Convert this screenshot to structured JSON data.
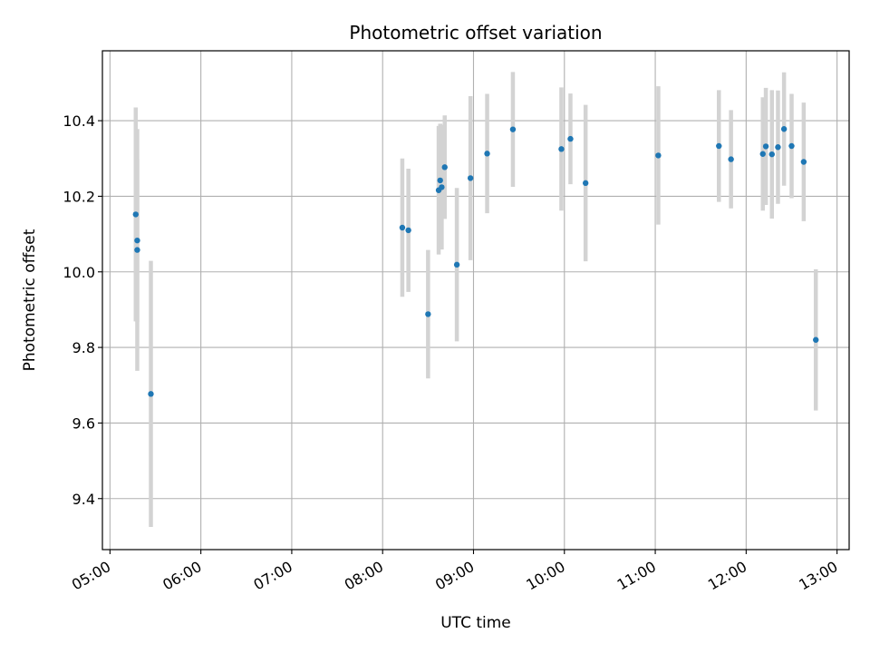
{
  "chart_data": {
    "type": "scatter",
    "title": "Photometric offset variation",
    "xlabel": "UTC time",
    "ylabel": "Photometric offset",
    "xlim": [
      "04:55",
      "13:08"
    ],
    "ylim": [
      9.265,
      10.585
    ],
    "x_ticks": [
      "05:00",
      "06:00",
      "07:00",
      "08:00",
      "09:00",
      "10:00",
      "11:00",
      "12:00",
      "13:00"
    ],
    "y_ticks": [
      "9.4",
      "9.6",
      "9.8",
      "10.0",
      "10.2",
      "10.4"
    ],
    "grid": true,
    "colors": {
      "marker": "#1f77b4",
      "errorbar": "#d3d3d3",
      "grid": "#b0b0b0"
    },
    "points": [
      {
        "x": "05:17",
        "y": 10.152,
        "yerr": 0.283
      },
      {
        "x": "05:18",
        "y": 10.083,
        "yerr": 0.215
      },
      {
        "x": "05:18",
        "y": 10.058,
        "yerr": 0.32
      },
      {
        "x": "05:27",
        "y": 9.677,
        "yerr": 0.352
      },
      {
        "x": "08:13",
        "y": 10.117,
        "yerr": 0.183
      },
      {
        "x": "08:17",
        "y": 10.11,
        "yerr": 0.163
      },
      {
        "x": "08:30",
        "y": 9.888,
        "yerr": 0.17
      },
      {
        "x": "08:37",
        "y": 10.216,
        "yerr": 0.17
      },
      {
        "x": "08:38",
        "y": 10.242,
        "yerr": 0.15
      },
      {
        "x": "08:39",
        "y": 10.224,
        "yerr": 0.165
      },
      {
        "x": "08:41",
        "y": 10.277,
        "yerr": 0.137
      },
      {
        "x": "08:49",
        "y": 10.019,
        "yerr": 0.203
      },
      {
        "x": "08:58",
        "y": 10.248,
        "yerr": 0.217
      },
      {
        "x": "09:09",
        "y": 10.313,
        "yerr": 0.158
      },
      {
        "x": "09:26",
        "y": 10.377,
        "yerr": 0.152
      },
      {
        "x": "09:58",
        "y": 10.325,
        "yerr": 0.163
      },
      {
        "x": "10:04",
        "y": 10.352,
        "yerr": 0.12
      },
      {
        "x": "10:14",
        "y": 10.235,
        "yerr": 0.207
      },
      {
        "x": "11:02",
        "y": 10.308,
        "yerr": 0.183
      },
      {
        "x": "11:42",
        "y": 10.333,
        "yerr": 0.148
      },
      {
        "x": "11:50",
        "y": 10.298,
        "yerr": 0.13
      },
      {
        "x": "12:11",
        "y": 10.312,
        "yerr": 0.15
      },
      {
        "x": "12:13",
        "y": 10.332,
        "yerr": 0.155
      },
      {
        "x": "12:17",
        "y": 10.311,
        "yerr": 0.17
      },
      {
        "x": "12:21",
        "y": 10.33,
        "yerr": 0.15
      },
      {
        "x": "12:25",
        "y": 10.378,
        "yerr": 0.15
      },
      {
        "x": "12:30",
        "y": 10.333,
        "yerr": 0.138
      },
      {
        "x": "12:38",
        "y": 10.291,
        "yerr": 0.157
      },
      {
        "x": "12:46",
        "y": 9.82,
        "yerr": 0.187
      }
    ]
  }
}
